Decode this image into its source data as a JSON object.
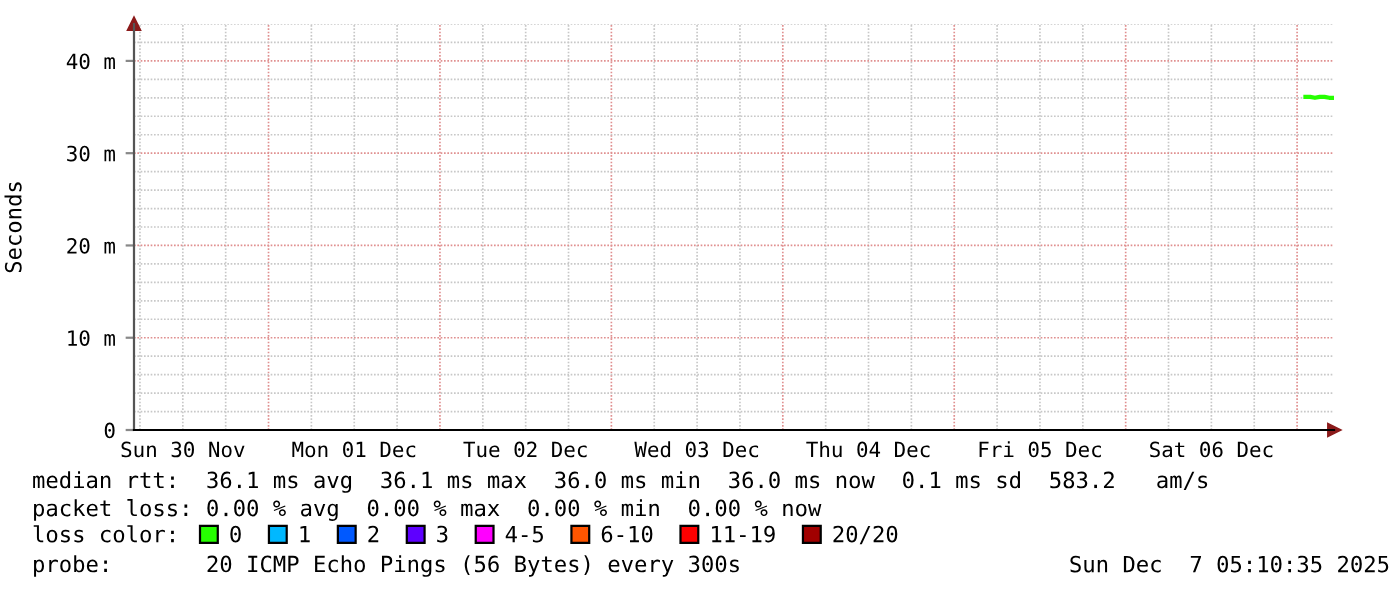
{
  "chart_data": {
    "type": "line",
    "ylabel": "Seconds",
    "x": [
      "2025-12-07T01:10",
      "2025-12-07T01:50",
      "2025-12-07T02:30",
      "2025-12-07T03:10",
      "2025-12-07T03:50",
      "2025-12-07T04:30",
      "2025-12-07T05:00"
    ],
    "series": [
      {
        "name": "0",
        "color": "#26ff00",
        "values": [
          36.1,
          36.1,
          36.0,
          36.1,
          36.1,
          36.0,
          36.0
        ]
      },
      {
        "name": "1",
        "color": "#00b8ff",
        "values": [
          null,
          null,
          null,
          null,
          null,
          null,
          null
        ]
      },
      {
        "name": "2",
        "color": "#0059ff",
        "values": [
          null,
          null,
          null,
          null,
          null,
          null,
          null
        ]
      },
      {
        "name": "3",
        "color": "#5e00ff",
        "values": [
          null,
          null,
          null,
          null,
          null,
          null,
          null
        ]
      },
      {
        "name": "4-5",
        "color": "#ff00ff",
        "values": [
          null,
          null,
          null,
          null,
          null,
          null,
          null
        ]
      },
      {
        "name": "6-10",
        "color": "#ff5500",
        "values": [
          null,
          null,
          null,
          null,
          null,
          null,
          null
        ]
      },
      {
        "name": "11-19",
        "color": "#ff0000",
        "values": [
          null,
          null,
          null,
          null,
          null,
          null,
          null
        ]
      },
      {
        "name": "20/20",
        "color": "#a10000",
        "values": [
          null,
          null,
          null,
          null,
          null,
          null,
          null
        ]
      }
    ],
    "legend": "bottom",
    "legend_title": "loss color:",
    "xlim": [
      "2025-11-30T05:10",
      "2025-12-07T05:10"
    ],
    "xticks": [
      {
        "value": "2025-11-30T12:00",
        "label": "Sun 30 Nov"
      },
      {
        "value": "2025-12-01T12:00",
        "label": "Mon 01 Dec"
      },
      {
        "value": "2025-12-02T12:00",
        "label": "Tue 02 Dec"
      },
      {
        "value": "2025-12-03T12:00",
        "label": "Wed 03 Dec"
      },
      {
        "value": "2025-12-04T12:00",
        "label": "Thu 04 Dec"
      },
      {
        "value": "2025-12-05T12:00",
        "label": "Fri 05 Dec"
      },
      {
        "value": "2025-12-06T12:00",
        "label": "Sat 06 Dec"
      }
    ],
    "ylim": [
      0,
      44
    ],
    "yticks": [
      0,
      {
        "value": 10,
        "label": "10 m"
      },
      {
        "value": 20,
        "label": "20 m"
      },
      {
        "value": 30,
        "label": "30 m"
      },
      {
        "value": 40,
        "label": "40 m"
      }
    ],
    "grid": true,
    "marker": "none",
    "line_style": "solid",
    "annotations": [
      "median rtt:  36.1 ms avg  36.1 ms max  36.0 ms min  36.0 ms now  0.1 ms sd  583.2   am/s",
      "packet loss: 0.00 % avg  0.00 % max  0.00 % min  0.00 % now",
      "probe:       20 ICMP Echo Pings (56 Bytes) every 300s",
      "Sun Dec  7 05:10:35 2025"
    ]
  }
}
